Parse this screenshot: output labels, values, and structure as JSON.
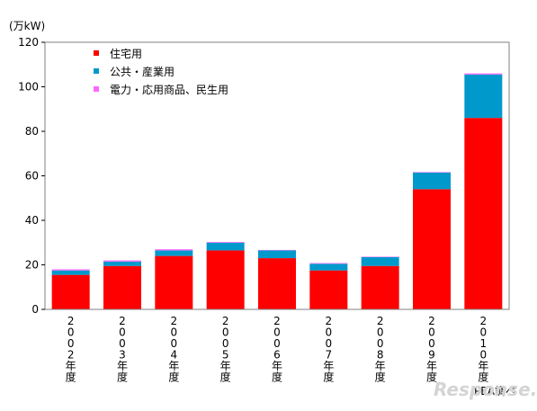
{
  "chart_data": {
    "type": "bar",
    "stacked": true,
    "unit_label": "(万kW)",
    "categories": [
      "2002年度",
      "2003年度",
      "2004年度",
      "2005年度",
      "2006年度",
      "2007年度",
      "2008年度",
      "2009年度",
      "2010年度"
    ],
    "series": [
      {
        "name": "住宅用",
        "color": "#ff0000",
        "values": [
          15.5,
          19.5,
          24.0,
          26.5,
          23.0,
          17.5,
          19.5,
          54.0,
          86.0
        ]
      },
      {
        "name": "公共・産業用",
        "color": "#0099cc",
        "values": [
          2.0,
          2.0,
          2.5,
          3.5,
          3.5,
          3.0,
          4.0,
          7.5,
          19.5
        ]
      },
      {
        "name": "電力・応用商品、民生用",
        "color": "#ff66ff",
        "values": [
          0.5,
          0.5,
          0.5,
          0.3,
          0.2,
          0.3,
          0.2,
          0.2,
          0.5
        ]
      }
    ],
    "ylim": [
      0,
      120
    ],
    "yticks": [
      0,
      20,
      40,
      60,
      80,
      100,
      120
    ],
    "grid": false,
    "legend_position": "top-left",
    "source_note": "JPEA調べ"
  },
  "watermark": "Response."
}
